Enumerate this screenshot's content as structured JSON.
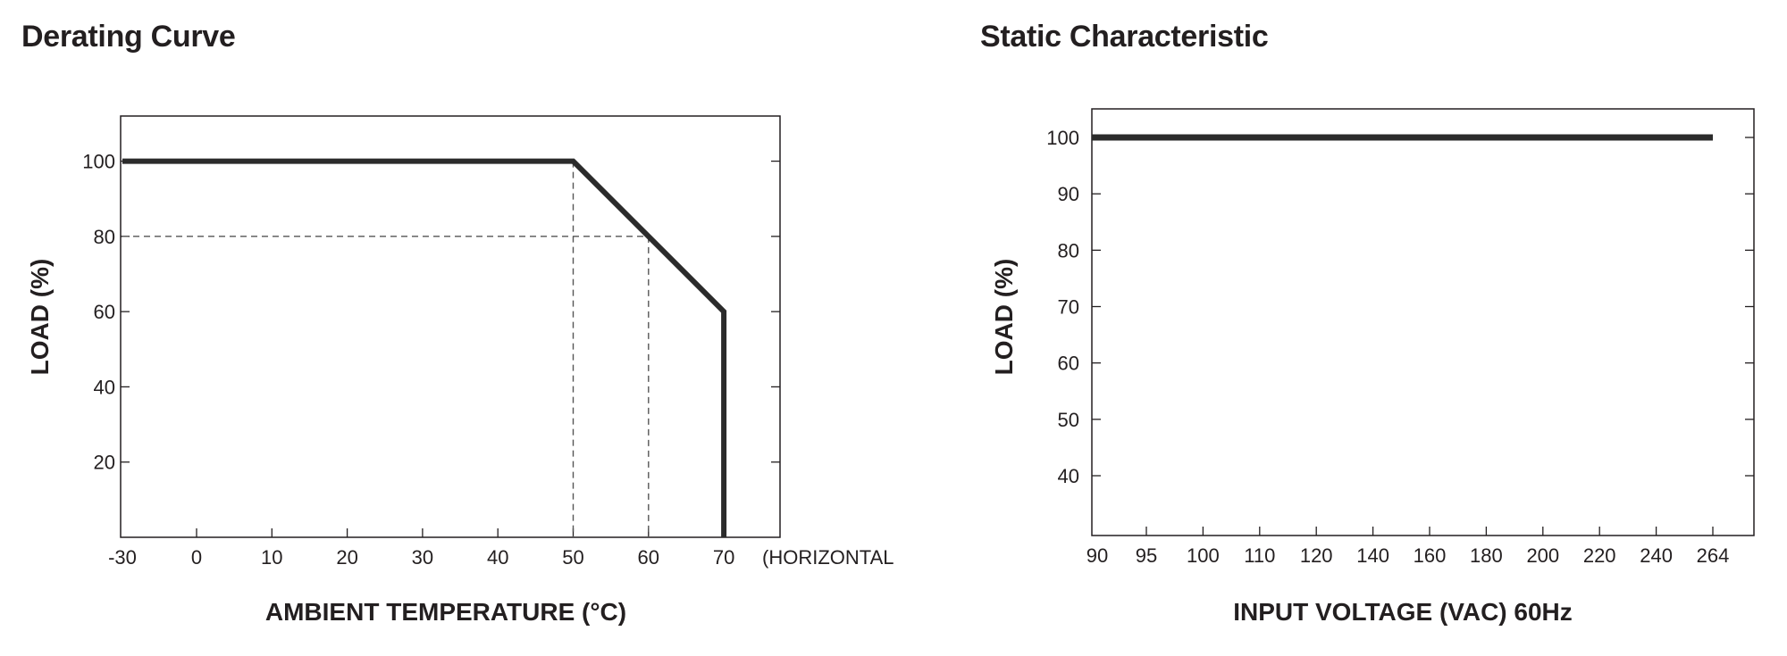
{
  "chart_data": [
    {
      "type": "line",
      "title": "Derating Curve",
      "xlabel": "AMBIENT TEMPERATURE (°C)",
      "ylabel": "LOAD (%)",
      "x_note": "(HORIZONTAL)",
      "x_ticks": [
        -30,
        0,
        10,
        20,
        30,
        40,
        50,
        60,
        70
      ],
      "y_ticks": [
        20,
        40,
        60,
        80,
        100
      ],
      "xlim": [
        -30,
        77
      ],
      "ylim": [
        0,
        112
      ],
      "grid": false,
      "series": [
        {
          "x": [
            -30,
            50,
            70,
            70
          ],
          "y": [
            100,
            100,
            60,
            0
          ]
        }
      ],
      "reference_lines": [
        {
          "x": [
            -30,
            60
          ],
          "y": [
            80,
            80
          ]
        },
        {
          "x": [
            50,
            50
          ],
          "y": [
            100,
            0
          ]
        },
        {
          "x": [
            60,
            60
          ],
          "y": [
            80,
            0
          ]
        }
      ]
    },
    {
      "type": "line",
      "title": "Static Characteristic",
      "xlabel": "INPUT VOLTAGE (VAC) 60Hz",
      "ylabel": "LOAD (%)",
      "x_scale": "categorical",
      "categories": [
        "90",
        "95",
        "100",
        "110",
        "120",
        "140",
        "160",
        "180",
        "200",
        "220",
        "240",
        "264"
      ],
      "y_ticks": [
        40,
        50,
        60,
        70,
        80,
        90,
        100
      ],
      "ylim": [
        30,
        105
      ],
      "grid": false,
      "series": [
        {
          "values": [
            100,
            100,
            100,
            100,
            100,
            100,
            100,
            100,
            100,
            100,
            100,
            100
          ]
        }
      ]
    }
  ]
}
